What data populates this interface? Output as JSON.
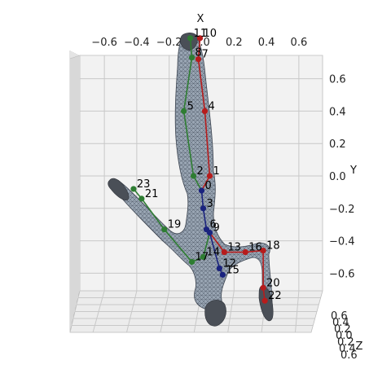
{
  "chart_data": {
    "type": "scatter",
    "projection": "3d",
    "title": "",
    "xlabel": "X",
    "ylabel": "Y",
    "zlabel": "Z",
    "x_ticks": [
      "−0.6",
      "−0.4",
      "−0.2",
      "0.0",
      "0.2",
      "0.4",
      "0.6"
    ],
    "y_ticks": [
      "0.6",
      "0.4",
      "0.2",
      "0.0",
      "−0.2",
      "−0.4",
      "−0.6"
    ],
    "z_ticks": [
      "0.6",
      "0.4",
      "0.2",
      "0.0",
      "0.2",
      "0.4",
      "0.6"
    ],
    "xlim": [
      -0.7,
      0.7
    ],
    "ylim": [
      -0.7,
      0.7
    ],
    "grid": true,
    "colors": {
      "left": "#2e7d32",
      "right": "#b71c1c",
      "spine": "#1a237e",
      "mesh_fill": "#9aa6b4",
      "mesh_line": "#4b5563"
    },
    "joints": [
      {
        "id": "0",
        "x": 0.0,
        "y": -0.09
      },
      {
        "id": "1",
        "x": 0.05,
        "y": -0.0
      },
      {
        "id": "2",
        "x": -0.05,
        "y": 0.0
      },
      {
        "id": "3",
        "x": 0.01,
        "y": -0.2
      },
      {
        "id": "4",
        "x": 0.02,
        "y": 0.4
      },
      {
        "id": "5",
        "x": -0.11,
        "y": 0.4
      },
      {
        "id": "6",
        "x": 0.03,
        "y": -0.33
      },
      {
        "id": "7",
        "x": -0.02,
        "y": 0.72
      },
      {
        "id": "8",
        "x": -0.06,
        "y": 0.73
      },
      {
        "id": "9",
        "x": 0.05,
        "y": -0.35
      },
      {
        "id": "10",
        "x": -0.01,
        "y": 0.85
      },
      {
        "id": "11",
        "x": -0.07,
        "y": 0.85
      },
      {
        "id": "12",
        "x": 0.11,
        "y": -0.57
      },
      {
        "id": "13",
        "x": 0.14,
        "y": -0.47
      },
      {
        "id": "14",
        "x": 0.01,
        "y": -0.5
      },
      {
        "id": "15",
        "x": 0.13,
        "y": -0.61
      },
      {
        "id": "16",
        "x": 0.27,
        "y": -0.47
      },
      {
        "id": "17",
        "x": -0.06,
        "y": -0.53
      },
      {
        "id": "18",
        "x": 0.38,
        "y": -0.46
      },
      {
        "id": "19",
        "x": -0.23,
        "y": -0.33
      },
      {
        "id": "20",
        "x": 0.38,
        "y": -0.69
      },
      {
        "id": "21",
        "x": -0.37,
        "y": -0.14
      },
      {
        "id": "22",
        "x": 0.39,
        "y": -0.77
      },
      {
        "id": "23",
        "x": -0.42,
        "y": -0.08
      }
    ],
    "bones": [
      {
        "from": "0",
        "to": "1",
        "side": "right"
      },
      {
        "from": "0",
        "to": "2",
        "side": "left"
      },
      {
        "from": "0",
        "to": "3",
        "side": "spine"
      },
      {
        "from": "1",
        "to": "4",
        "side": "right"
      },
      {
        "from": "2",
        "to": "5",
        "side": "left"
      },
      {
        "from": "3",
        "to": "6",
        "side": "spine"
      },
      {
        "from": "4",
        "to": "7",
        "side": "right"
      },
      {
        "from": "5",
        "to": "8",
        "side": "left"
      },
      {
        "from": "6",
        "to": "9",
        "side": "spine"
      },
      {
        "from": "7",
        "to": "10",
        "side": "right"
      },
      {
        "from": "8",
        "to": "11",
        "side": "left"
      },
      {
        "from": "9",
        "to": "12",
        "side": "spine"
      },
      {
        "from": "9",
        "to": "13",
        "side": "right"
      },
      {
        "from": "9",
        "to": "14",
        "side": "left"
      },
      {
        "from": "12",
        "to": "15",
        "side": "spine"
      },
      {
        "from": "13",
        "to": "16",
        "side": "right"
      },
      {
        "from": "14",
        "to": "17",
        "side": "left"
      },
      {
        "from": "16",
        "to": "18",
        "side": "right"
      },
      {
        "from": "17",
        "to": "19",
        "side": "left"
      },
      {
        "from": "18",
        "to": "20",
        "side": "right"
      },
      {
        "from": "19",
        "to": "21",
        "side": "left"
      },
      {
        "from": "20",
        "to": "22",
        "side": "right"
      },
      {
        "from": "21",
        "to": "23",
        "side": "left"
      }
    ]
  }
}
